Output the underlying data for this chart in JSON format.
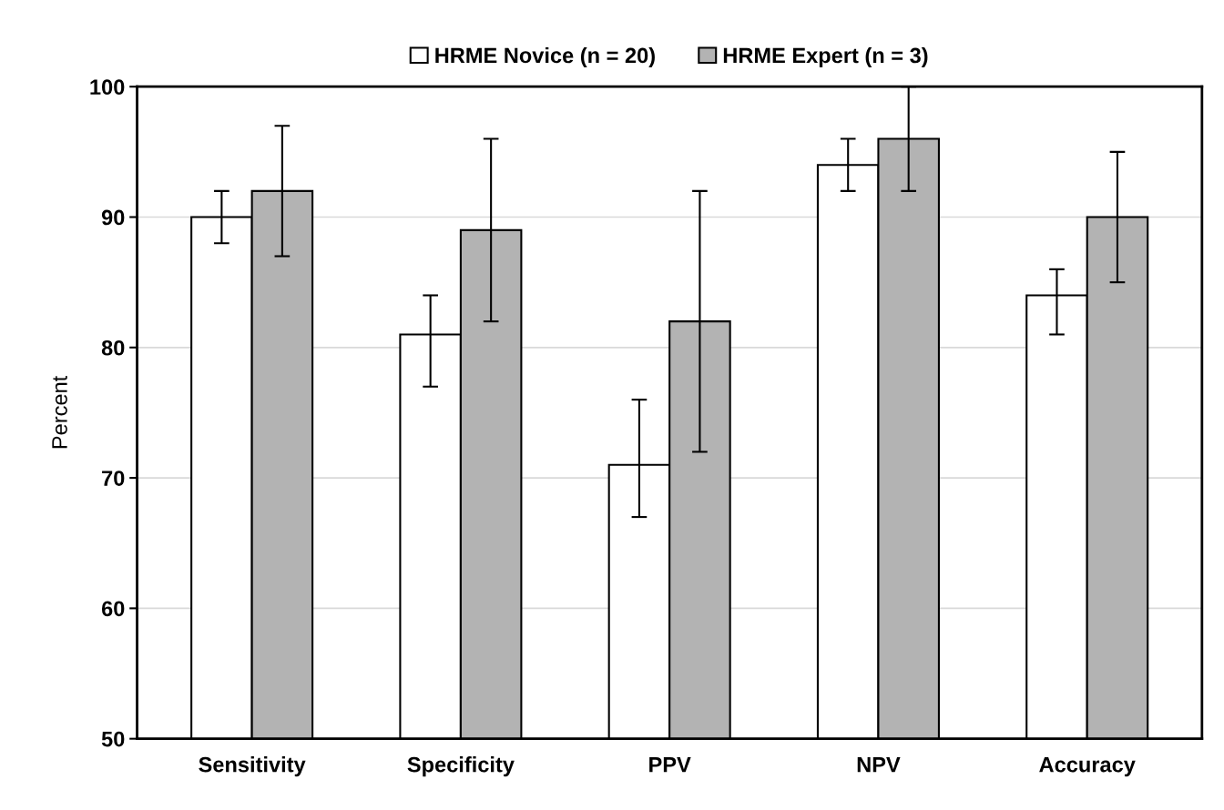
{
  "chart_data": {
    "type": "bar",
    "ylabel": "Percent",
    "categories": [
      "Sensitivity",
      "Specificity",
      "PPV",
      "NPV",
      "Accuracy"
    ],
    "series": [
      {
        "name": "HRME Novice (n = 20)",
        "color": "#ffffff",
        "values": [
          90,
          81,
          71,
          94,
          84
        ],
        "errors": [
          [
            88,
            92
          ],
          [
            77,
            84
          ],
          [
            67,
            76
          ],
          [
            92,
            96
          ],
          [
            81,
            86
          ]
        ]
      },
      {
        "name": "HRME Expert (n = 3)",
        "color": "#b3b3b3",
        "values": [
          92,
          89,
          82,
          96,
          90
        ],
        "errors": [
          [
            87,
            97
          ],
          [
            82,
            96
          ],
          [
            72,
            92
          ],
          [
            92,
            100
          ],
          [
            85,
            95
          ]
        ]
      }
    ],
    "ylim": [
      50,
      100
    ],
    "yticks": [
      50,
      60,
      70,
      80,
      90,
      100
    ],
    "grid": "y",
    "legend": "top"
  }
}
